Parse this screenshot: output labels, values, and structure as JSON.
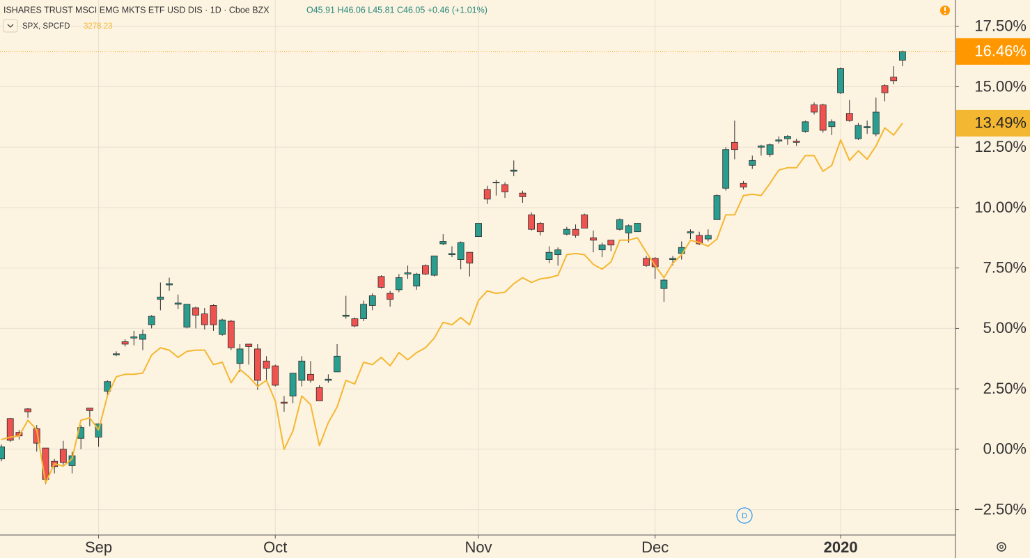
{
  "chart_data": {
    "type": "candlestick",
    "title": "ISHARES TRUST MSCI EMG MKTS ETF USD DIS · 1D · Cboe BZX",
    "ohlc_label": "O45.91 H46.06 L45.81 C46.05 +0.46 (+1.01%)",
    "event_marker": "D",
    "background": "#fdf3e1",
    "grid": true,
    "xlim": [
      -0.16,
      108
    ],
    "xticks": [
      {
        "value": 11,
        "label": "Sep"
      },
      {
        "value": 31,
        "label": "Oct"
      },
      {
        "value": 54,
        "label": "Nov"
      },
      {
        "value": 74,
        "label": "Dec"
      },
      {
        "value": 95,
        "label": "2020"
      }
    ],
    "ylim": [
      -3.55,
      18.59
    ],
    "yticks": [
      {
        "value": -2.5,
        "label": "−2.50%"
      },
      {
        "value": 0,
        "label": "0.00%"
      },
      {
        "value": 2.5,
        "label": "2.50%"
      },
      {
        "value": 5,
        "label": "5.00%"
      },
      {
        "value": 7.5,
        "label": "7.50%"
      },
      {
        "value": 10,
        "label": "10.00%"
      },
      {
        "value": 12.5,
        "label": "12.50%"
      },
      {
        "value": 15,
        "label": "15.00%"
      },
      {
        "value": 17.5,
        "label": "17.50%"
      }
    ],
    "series": [
      {
        "type": "candlestick",
        "up_color": "#2a9d8f",
        "down_color": "#ef5350",
        "last_color": "#ff9800",
        "last_label": "16.46%",
        "open": [
          -0.4,
          1.27,
          0.7,
          1.67,
          0.85,
          0.05,
          -0.5,
          0.0,
          -0.68,
          0.45,
          1.7,
          0.5,
          2.4,
          3.9,
          4.45,
          4.6,
          4.55,
          5.15,
          6.2,
          6.8,
          6.0,
          5.05,
          5.85,
          5.6,
          5.95,
          4.75,
          5.3,
          3.55,
          4.35,
          4.15,
          3.65,
          3.45,
          1.95,
          2.2,
          2.85,
          3.1,
          2.55,
          2.85,
          3.2,
          5.5,
          5.4,
          5.4,
          5.95,
          7.15,
          6.45,
          6.6,
          7.25,
          6.75,
          7.6,
          7.2,
          8.5,
          8.05,
          7.85,
          8.15,
          8.8,
          10.75,
          11.05,
          10.95,
          11.5,
          10.6,
          9.7,
          9.35,
          7.85,
          8.05,
          8.9,
          9.1,
          9.7,
          8.75,
          8.25,
          8.65,
          9.1,
          8.95,
          9.0,
          7.9,
          7.9,
          6.65,
          7.85,
          8.1,
          8.95,
          8.85,
          8.7,
          9.5,
          10.8,
          12.7,
          11.0,
          11.75,
          12.5,
          12.2,
          12.75,
          12.85,
          12.75,
          13.15,
          14.25,
          14.25,
          13.35,
          14.75,
          13.9,
          12.85,
          13.3,
          13.05,
          15.05,
          15.4,
          16.1
        ],
        "high": [
          0.2,
          1.3,
          0.8,
          1.7,
          1.0,
          0.05,
          -0.4,
          0.35,
          -0.1,
          1.0,
          1.7,
          1.05,
          2.85,
          4.05,
          4.55,
          4.9,
          4.95,
          5.55,
          6.9,
          7.1,
          6.4,
          6.0,
          5.9,
          5.85,
          6.0,
          5.4,
          5.35,
          4.35,
          4.35,
          4.35,
          3.85,
          3.5,
          2.2,
          3.15,
          3.85,
          3.65,
          2.65,
          3.1,
          4.35,
          6.35,
          5.45,
          6.15,
          6.45,
          7.2,
          6.55,
          7.25,
          7.6,
          7.3,
          7.65,
          8.0,
          8.9,
          8.4,
          8.6,
          8.15,
          9.35,
          10.9,
          11.15,
          11.05,
          11.95,
          10.7,
          9.8,
          9.4,
          8.4,
          8.35,
          9.2,
          9.3,
          9.75,
          9.05,
          8.55,
          8.65,
          9.55,
          9.3,
          9.35,
          8.0,
          7.95,
          7.05,
          8.0,
          8.6,
          9.1,
          9.0,
          9.1,
          10.55,
          12.5,
          13.6,
          11.1,
          12.15,
          12.6,
          12.65,
          12.95,
          13.0,
          12.85,
          13.6,
          14.35,
          14.3,
          13.65,
          15.8,
          14.45,
          13.5,
          13.6,
          14.55,
          15.1,
          15.85,
          16.5
        ],
        "low": [
          -0.5,
          0.3,
          0.4,
          1.3,
          -0.1,
          -1.45,
          -1.0,
          -0.65,
          -1.0,
          0.0,
          0.95,
          0.1,
          2.2,
          3.85,
          4.25,
          4.3,
          4.1,
          5.0,
          5.75,
          6.55,
          5.8,
          5.0,
          5.0,
          4.95,
          4.9,
          4.7,
          4.1,
          3.2,
          3.5,
          2.45,
          2.8,
          2.6,
          1.55,
          1.9,
          2.6,
          2.75,
          2.0,
          2.75,
          3.2,
          5.4,
          5.05,
          5.3,
          5.75,
          6.65,
          5.9,
          6.5,
          7.05,
          6.6,
          7.2,
          7.15,
          8.45,
          7.95,
          7.45,
          7.15,
          8.8,
          10.15,
          10.5,
          10.4,
          11.3,
          10.2,
          9.05,
          8.85,
          7.7,
          7.6,
          8.85,
          8.75,
          9.15,
          8.15,
          7.95,
          8.2,
          9.05,
          8.55,
          9.0,
          7.55,
          7.05,
          6.1,
          7.6,
          7.85,
          8.7,
          8.45,
          8.6,
          9.5,
          10.7,
          12.0,
          10.75,
          11.6,
          12.15,
          12.1,
          12.65,
          12.6,
          12.55,
          13.1,
          13.85,
          13.1,
          13.0,
          14.7,
          13.55,
          12.8,
          13.05,
          12.95,
          14.4,
          15.1,
          15.85
        ],
        "close": [
          0.1,
          0.37,
          0.55,
          1.55,
          0.25,
          -1.25,
          -0.72,
          -0.55,
          -0.27,
          0.9,
          1.6,
          1.05,
          2.8,
          3.95,
          4.35,
          4.65,
          4.75,
          5.5,
          6.3,
          6.85,
          6.05,
          6.0,
          5.55,
          5.15,
          5.15,
          5.35,
          4.2,
          4.15,
          4.25,
          2.85,
          3.35,
          2.65,
          1.9,
          3.15,
          3.65,
          2.85,
          2.0,
          2.9,
          3.85,
          5.55,
          5.1,
          6.0,
          6.35,
          6.7,
          6.2,
          7.1,
          7.3,
          7.25,
          7.25,
          8.0,
          8.6,
          8.1,
          8.55,
          7.7,
          9.35,
          10.35,
          11.05,
          10.65,
          11.55,
          10.45,
          9.1,
          9.0,
          8.15,
          8.25,
          9.1,
          8.85,
          9.15,
          8.65,
          8.45,
          8.45,
          9.5,
          9.25,
          9.35,
          7.6,
          7.55,
          7.0,
          7.9,
          8.35,
          9.0,
          8.5,
          8.85,
          10.5,
          12.4,
          12.4,
          10.85,
          11.95,
          12.55,
          12.6,
          12.8,
          12.95,
          12.7,
          13.55,
          13.95,
          13.2,
          13.55,
          15.75,
          13.6,
          13.4,
          13.35,
          13.95,
          14.75,
          15.25,
          16.46
        ]
      },
      {
        "type": "line",
        "name": "SPX, SPCFD",
        "legend_value": 3278.23,
        "color": "#f4b731",
        "last_label": "13.49%",
        "values": [
          0.4,
          0.5,
          0.55,
          1.2,
          0.8,
          -1.4,
          -0.6,
          -0.7,
          -0.4,
          1.2,
          1.3,
          0.8,
          2.2,
          3.0,
          3.1,
          3.1,
          3.15,
          3.9,
          4.2,
          4.1,
          3.8,
          4.05,
          4.1,
          4.1,
          3.5,
          3.6,
          2.75,
          3.3,
          3.0,
          2.6,
          2.85,
          2.0,
          0.0,
          0.75,
          2.2,
          1.85,
          0.15,
          1.1,
          1.75,
          2.85,
          2.7,
          3.6,
          3.5,
          3.8,
          3.45,
          4.0,
          3.7,
          4.0,
          4.2,
          4.6,
          5.25,
          5.15,
          5.45,
          5.15,
          6.15,
          6.55,
          6.45,
          6.5,
          6.85,
          7.1,
          6.9,
          7.05,
          7.1,
          7.2,
          8.05,
          8.1,
          8.05,
          7.65,
          7.45,
          7.75,
          8.65,
          8.65,
          8.75,
          8.15,
          7.6,
          7.1,
          7.7,
          8.05,
          8.65,
          8.55,
          8.4,
          8.7,
          9.7,
          9.7,
          10.5,
          10.55,
          10.5,
          11.0,
          11.55,
          11.65,
          11.65,
          12.15,
          12.15,
          11.5,
          11.75,
          12.8,
          11.95,
          12.35,
          12.0,
          12.55,
          13.3,
          13.0,
          13.49
        ]
      }
    ]
  }
}
